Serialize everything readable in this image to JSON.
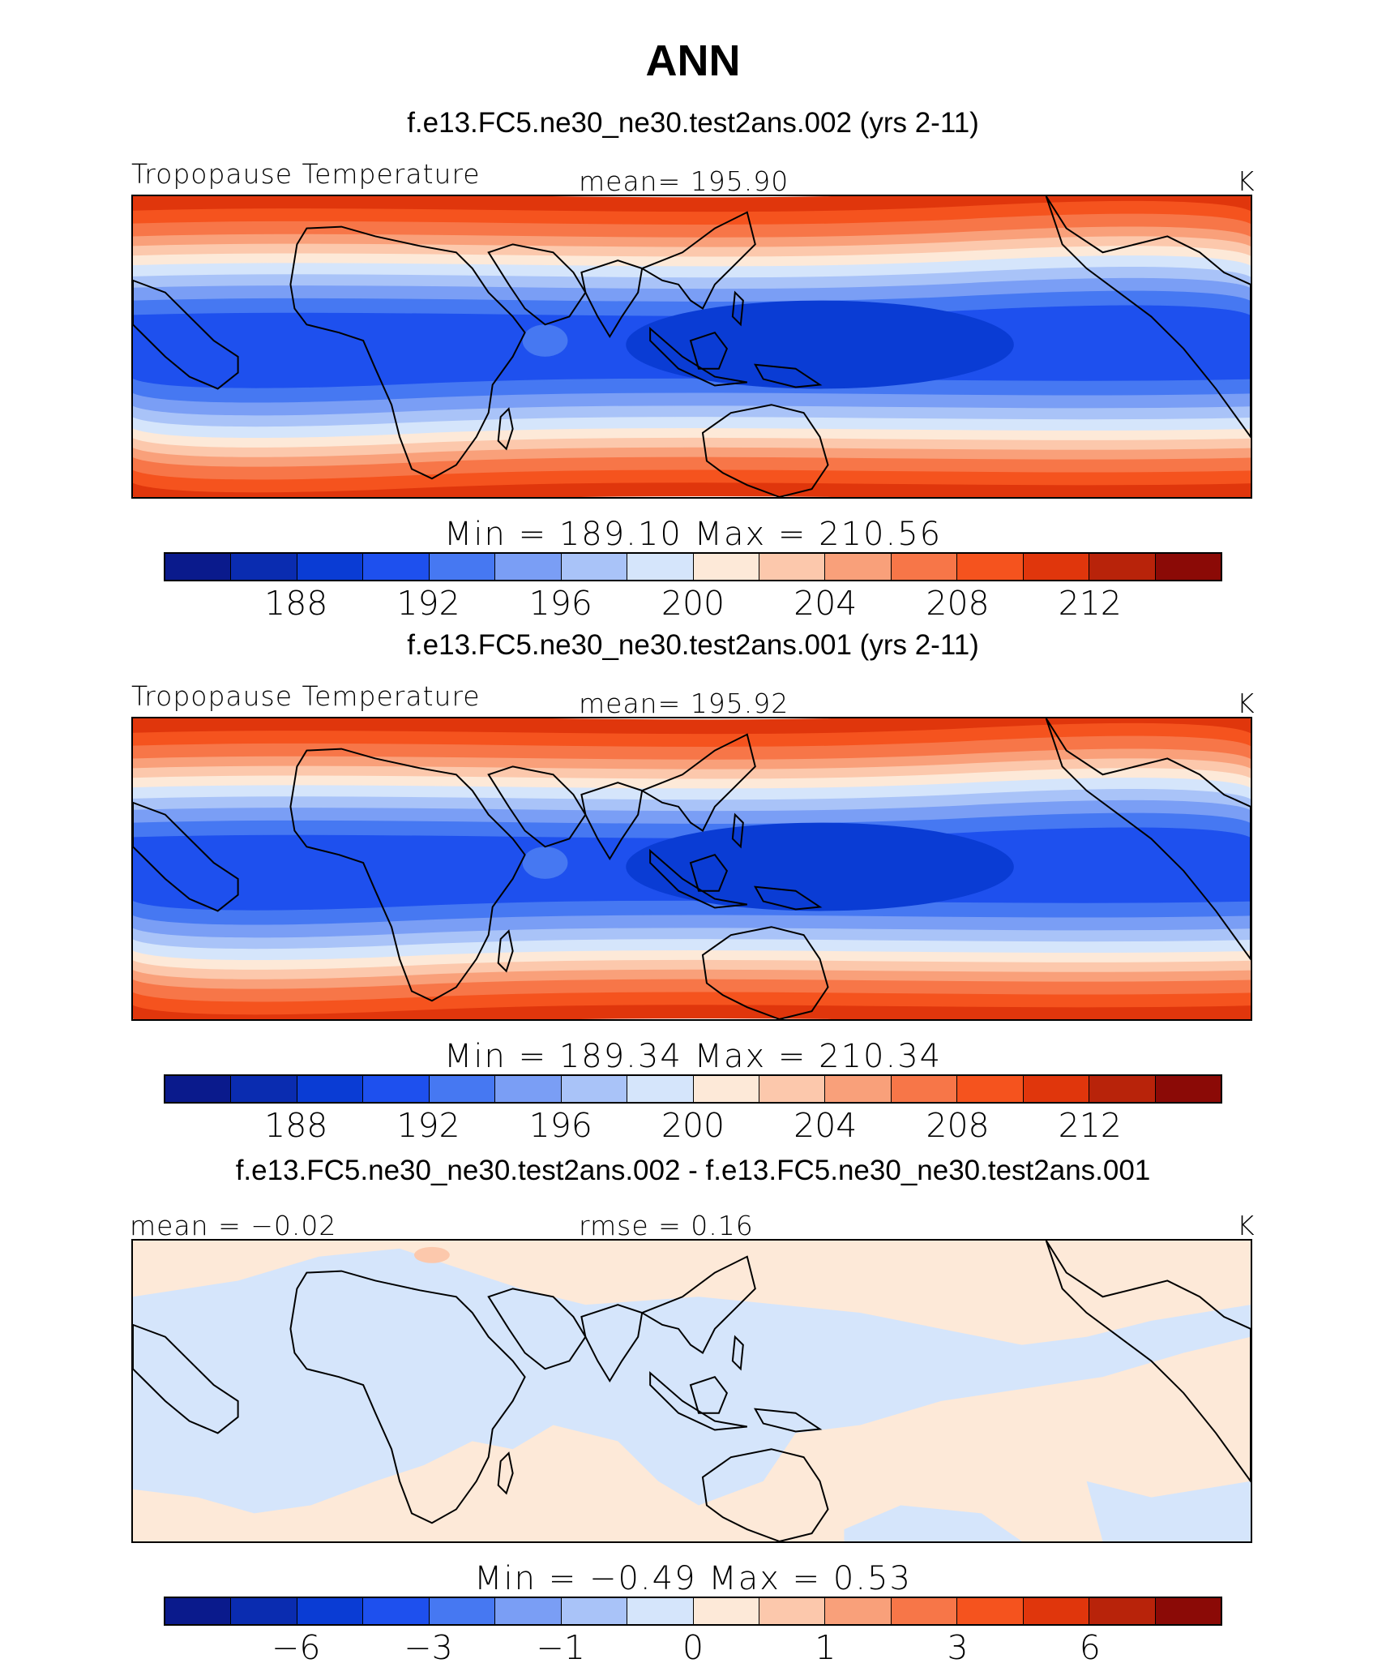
{
  "title": "ANN",
  "panels": [
    {
      "id": "case2",
      "case_title": "f.e13.FC5.ne30_ne30.test2ans.002 (yrs 2-11)",
      "left_label": "Tropopause Temperature",
      "center_label": "mean= 195.90",
      "units": "K",
      "stats": "Min = 189.10 Max = 210.56",
      "map_type": "field"
    },
    {
      "id": "case1",
      "case_title": "f.e13.FC5.ne30_ne30.test2ans.001 (yrs 2-11)",
      "left_label": "Tropopause Temperature",
      "center_label": "mean= 195.92",
      "units": "K",
      "stats": "Min = 189.34 Max = 210.34",
      "map_type": "field"
    },
    {
      "id": "diff",
      "case_title": "f.e13.FC5.ne30_ne30.test2ans.002 - f.e13.FC5.ne30_ne30.test2ans.001",
      "left_label": "mean = −0.02",
      "center_label": "rmse = 0.16",
      "units": "K",
      "stats": "Min = −0.49 Max = 0.53",
      "map_type": "difference"
    }
  ],
  "colorbar": {
    "colors": [
      "#0a1a8c",
      "#0a2cb0",
      "#0a3cd4",
      "#1e50ee",
      "#4678f2",
      "#7a9ef5",
      "#a9c3f8",
      "#d5e5fb",
      "#fde9d8",
      "#fcc8ac",
      "#f9a07a",
      "#f77648",
      "#f5531e",
      "#e0360c",
      "#b8230a",
      "#8b0a06"
    ],
    "field_ticks": [
      "188",
      "192",
      "196",
      "200",
      "204",
      "208",
      "212"
    ],
    "diff_ticks": [
      "−6",
      "−3",
      "−1",
      "0",
      "1",
      "3",
      "6"
    ]
  },
  "chart_data": {
    "type": "heatmap",
    "title": "ANN",
    "variable": "Tropopause Temperature",
    "units": "K",
    "projection": "cylindrical equidistant",
    "field_contour_levels": [
      186,
      188,
      190,
      192,
      194,
      196,
      198,
      200,
      202,
      204,
      206,
      208,
      210,
      212,
      214
    ],
    "diff_contour_levels": [
      -8,
      -6,
      -4,
      -3,
      -2,
      -1,
      -0.5,
      0,
      0.5,
      1,
      2,
      3,
      4,
      6,
      8
    ],
    "panels": [
      {
        "case": "f.e13.FC5.ne30_ne30.test2ans.002 (yrs 2-11)",
        "mean": 195.9,
        "min": 189.1,
        "max": 210.56
      },
      {
        "case": "f.e13.FC5.ne30_ne30.test2ans.001 (yrs 2-11)",
        "mean": 195.92,
        "min": 189.34,
        "max": 210.34
      },
      {
        "case": "f.e13.FC5.ne30_ne30.test2ans.002 - f.e13.FC5.ne30_ne30.test2ans.001",
        "mean": -0.02,
        "rmse": 0.16,
        "min": -0.49,
        "max": 0.53
      }
    ]
  }
}
